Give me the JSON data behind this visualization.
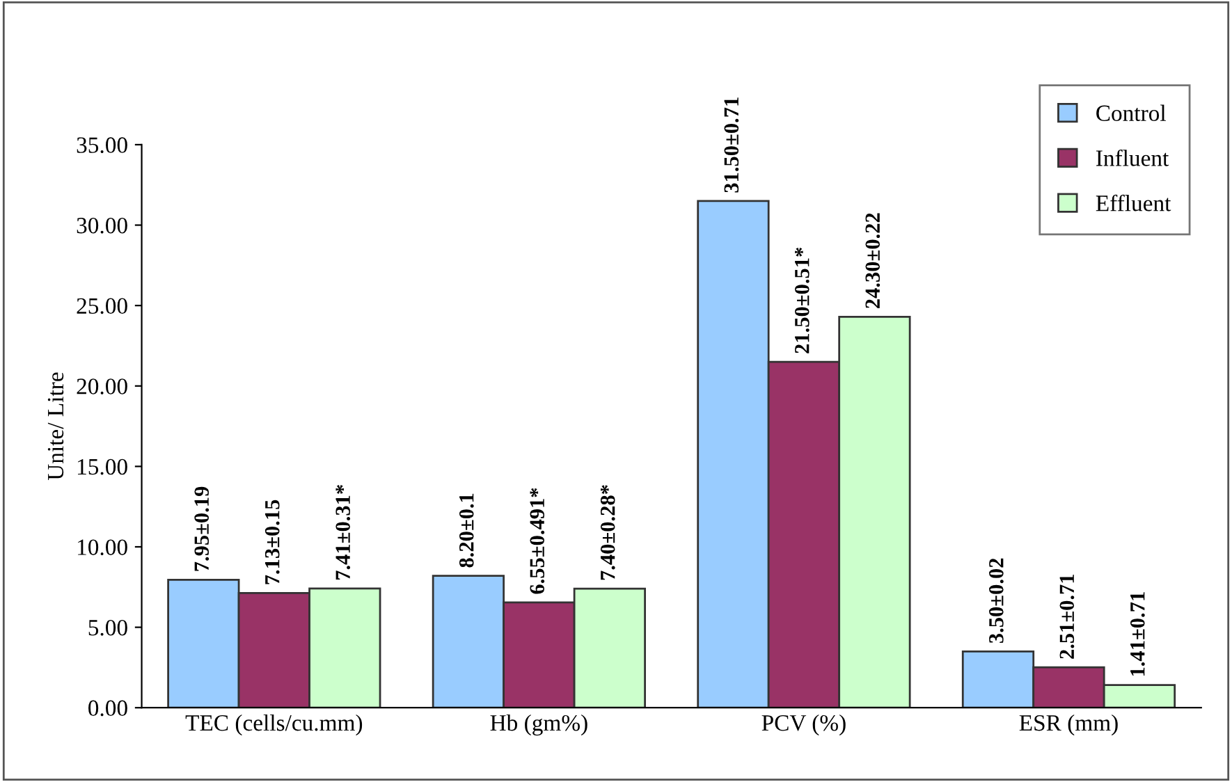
{
  "chart_data": {
    "type": "bar",
    "ylabel": "Unite/ Litre",
    "categories": [
      "TEC (cells/cu.mm)",
      "Hb (gm%)",
      "PCV (%)",
      "ESR (mm)"
    ],
    "series": [
      {
        "name": "Control",
        "color": "#99ccff",
        "values": [
          7.95,
          8.2,
          31.5,
          3.5
        ],
        "value_labels": [
          "7.95±0.19",
          "8.20±0.1",
          "31.50±0.71",
          "3.50±0.02"
        ]
      },
      {
        "name": "Influent",
        "color": "#993366",
        "values": [
          7.13,
          6.55,
          21.5,
          2.51
        ],
        "value_labels": [
          "7.13±0.15",
          "6.55±0.491*",
          "21.50±0.51*",
          "2.51±0.71"
        ]
      },
      {
        "name": "Effluent",
        "color": "#ccffcc",
        "values": [
          7.41,
          7.4,
          24.3,
          1.41
        ],
        "value_labels": [
          "7.41±0.31*",
          "7.40±0.28*",
          "24.30±0.22",
          "1.41±0.71"
        ]
      }
    ],
    "ylim": [
      0,
      35
    ],
    "yticks": [
      {
        "value": 0,
        "label": "0.00"
      },
      {
        "value": 5,
        "label": "5.00"
      },
      {
        "value": 10,
        "label": "10.00"
      },
      {
        "value": 15,
        "label": "15.00"
      },
      {
        "value": 20,
        "label": "20.00"
      },
      {
        "value": 25,
        "label": "25.00"
      },
      {
        "value": 30,
        "label": "30.00"
      },
      {
        "value": 35,
        "label": "35.00"
      }
    ],
    "grid": false,
    "legend": "top right"
  }
}
